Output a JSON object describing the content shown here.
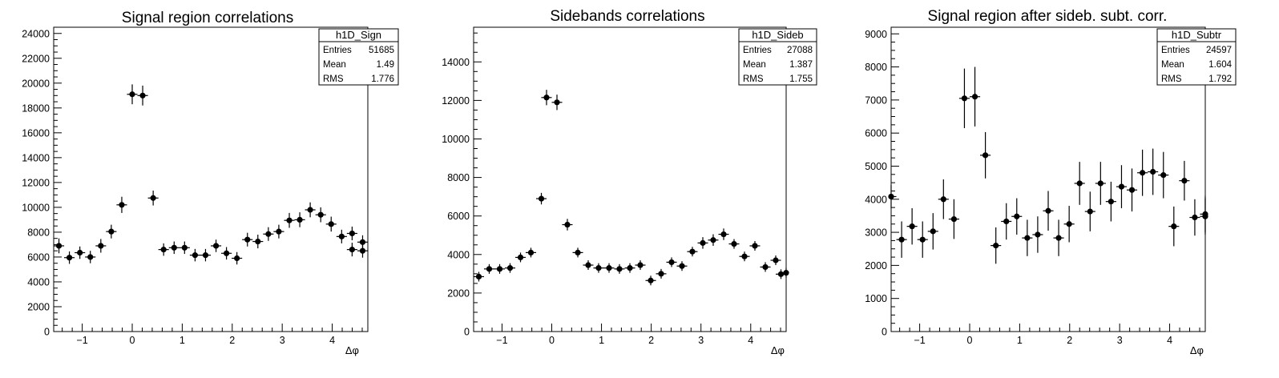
{
  "chart_data": [
    {
      "type": "scatter",
      "histogram_name": "h1D_Sign",
      "title": "Signal region correlations",
      "xlabel": "Δφ",
      "ylabel": "",
      "xlim": [
        -1.5708,
        4.7124
      ],
      "ylim": [
        0,
        24500
      ],
      "xticks": [
        -1,
        0,
        1,
        2,
        3,
        4
      ],
      "yticks": [
        0,
        2000,
        4000,
        6000,
        8000,
        10000,
        12000,
        14000,
        16000,
        18000,
        20000,
        22000,
        24000
      ],
      "grid": false,
      "stats": [
        {
          "label": "Entries",
          "value": "51685"
        },
        {
          "label": "Mean",
          "value": "1.49"
        },
        {
          "label": "RMS",
          "value": "1.776"
        }
      ],
      "x": [
        -1.466,
        -1.257,
        -1.047,
        -0.838,
        -0.628,
        -0.419,
        -0.209,
        0.0,
        0.209,
        0.419,
        0.628,
        0.838,
        1.047,
        1.257,
        1.466,
        1.676,
        1.885,
        2.094,
        2.304,
        2.513,
        2.723,
        2.932,
        3.142,
        3.351,
        3.56,
        3.77,
        3.979,
        4.189,
        4.398,
        4.608
      ],
      "y": [
        6900,
        5950,
        6350,
        6000,
        6900,
        8050,
        10200,
        19100,
        19000,
        10750,
        6600,
        6750,
        6750,
        6150,
        6150,
        6900,
        6300,
        5900,
        7400,
        7250,
        7850,
        8050,
        8950,
        9000,
        9800,
        9400,
        8650,
        7650,
        7900,
        7200
      ],
      "yerr": [
        600,
        500,
        500,
        500,
        550,
        550,
        650,
        800,
        800,
        600,
        500,
        500,
        500,
        500,
        500,
        500,
        500,
        500,
        550,
        550,
        550,
        550,
        600,
        600,
        600,
        600,
        600,
        550,
        550,
        550
      ],
      "extra_points": [
        {
          "x": 4.398,
          "y": 6600,
          "err": 550
        },
        {
          "x": 4.608,
          "y": 6500,
          "err": 550
        }
      ]
    },
    {
      "type": "scatter",
      "histogram_name": "h1D_Sideb",
      "title": "Sidebands correlations",
      "xlabel": "Δφ",
      "ylabel": "",
      "xlim": [
        -1.5708,
        4.7124
      ],
      "ylim": [
        0,
        15800
      ],
      "xticks": [
        -1,
        0,
        1,
        2,
        3,
        4
      ],
      "yticks": [
        0,
        2000,
        4000,
        6000,
        8000,
        10000,
        12000,
        14000
      ],
      "grid": false,
      "stats": [
        {
          "label": "Entries",
          "value": "27088"
        },
        {
          "label": "Mean",
          "value": "1.387"
        },
        {
          "label": "RMS",
          "value": "1.755"
        }
      ],
      "x": [
        -1.466,
        -1.257,
        -1.047,
        -0.838,
        -0.628,
        -0.419,
        -0.209,
        -0.105,
        0.105,
        0.314,
        0.524,
        0.733,
        0.942,
        1.152,
        1.361,
        1.571,
        1.78,
        1.99,
        2.199,
        2.409,
        2.618,
        2.827,
        3.037,
        3.246,
        3.456,
        3.665,
        3.875,
        4.084,
        4.294,
        4.503,
        4.712
      ],
      "y": [
        2850,
        3250,
        3250,
        3300,
        3850,
        4100,
        6900,
        12150,
        11900,
        5550,
        4100,
        3450,
        3300,
        3300,
        3250,
        3300,
        3450,
        2650,
        3000,
        3600,
        3400,
        4150,
        4600,
        4750,
        5050,
        4550,
        3900,
        4450,
        3350,
        3700,
        3050
      ],
      "yerr": [
        250,
        250,
        250,
        250,
        250,
        250,
        300,
        400,
        400,
        300,
        250,
        250,
        250,
        250,
        250,
        250,
        250,
        250,
        250,
        250,
        250,
        250,
        300,
        300,
        300,
        250,
        250,
        250,
        250,
        250,
        250
      ],
      "extra_points": [
        {
          "x": 4.608,
          "y": 2980,
          "err": 250
        }
      ]
    },
    {
      "type": "scatter",
      "histogram_name": "h1D_Subtr",
      "title": "Signal region after sideb. subt. corr.",
      "xlabel": "Δφ",
      "ylabel": "",
      "xlim": [
        -1.5708,
        4.7124
      ],
      "ylim": [
        0,
        9200
      ],
      "xticks": [
        -1,
        0,
        1,
        2,
        3,
        4
      ],
      "yticks": [
        0,
        1000,
        2000,
        3000,
        4000,
        5000,
        6000,
        7000,
        8000,
        9000
      ],
      "grid": false,
      "stats": [
        {
          "label": "Entries",
          "value": "24597"
        },
        {
          "label": "Mean",
          "value": "1.604"
        },
        {
          "label": "RMS",
          "value": "1.792"
        }
      ],
      "x": [
        -1.571,
        -1.361,
        -1.152,
        -0.942,
        -0.733,
        -0.524,
        -0.314,
        -0.105,
        0.105,
        0.314,
        0.524,
        0.733,
        0.942,
        1.152,
        1.361,
        1.571,
        1.78,
        1.99,
        2.199,
        2.409,
        2.618,
        2.827,
        3.037,
        3.246,
        3.456,
        3.665,
        3.875,
        4.084,
        4.294,
        4.503,
        4.712
      ],
      "y": [
        4080,
        2780,
        3180,
        2780,
        3030,
        4000,
        3400,
        7050,
        7100,
        5330,
        2600,
        3330,
        3480,
        2830,
        2930,
        3650,
        2830,
        3250,
        4480,
        3630,
        4480,
        3930,
        4380,
        4280,
        4800,
        4830,
        4730,
        3180,
        4560,
        3450,
        3480
      ],
      "yerr": [
        350,
        550,
        550,
        550,
        550,
        600,
        600,
        900,
        900,
        700,
        550,
        550,
        550,
        550,
        550,
        600,
        550,
        550,
        650,
        600,
        650,
        600,
        650,
        650,
        700,
        700,
        700,
        600,
        600,
        550,
        550
      ],
      "extra_points": [
        {
          "x": 4.712,
          "y": 3550,
          "err": 550
        }
      ]
    }
  ]
}
